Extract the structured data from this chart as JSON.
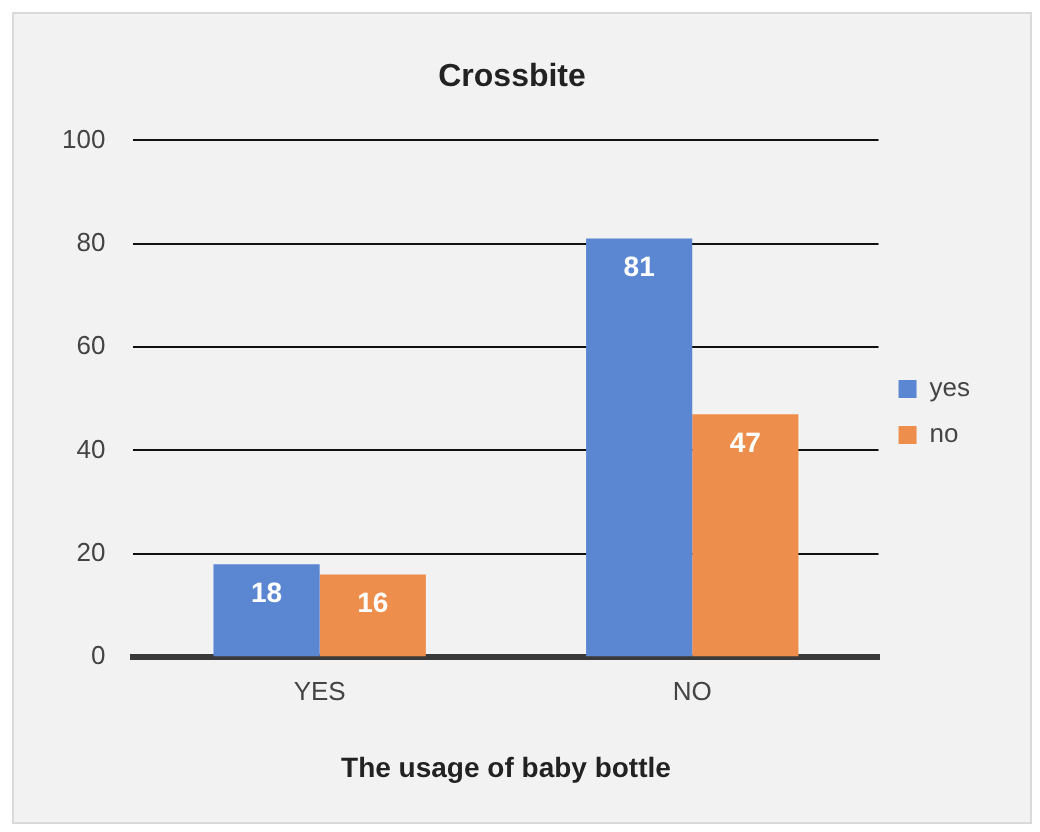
{
  "chart_data": {
    "type": "bar",
    "title": "Crossbite",
    "xlabel": "The usage of baby bottle",
    "categories": [
      "YES",
      "NO"
    ],
    "series": [
      {
        "name": "yes",
        "color": "#5b87d2",
        "values": [
          18,
          81
        ]
      },
      {
        "name": "no",
        "color": "#ee8e4c",
        "values": [
          16,
          47
        ]
      }
    ],
    "ylim": [
      0,
      100
    ],
    "yticks": [
      0,
      20,
      40,
      60,
      80,
      100
    ],
    "grid": "y",
    "legend": "right",
    "data_labels": true
  }
}
